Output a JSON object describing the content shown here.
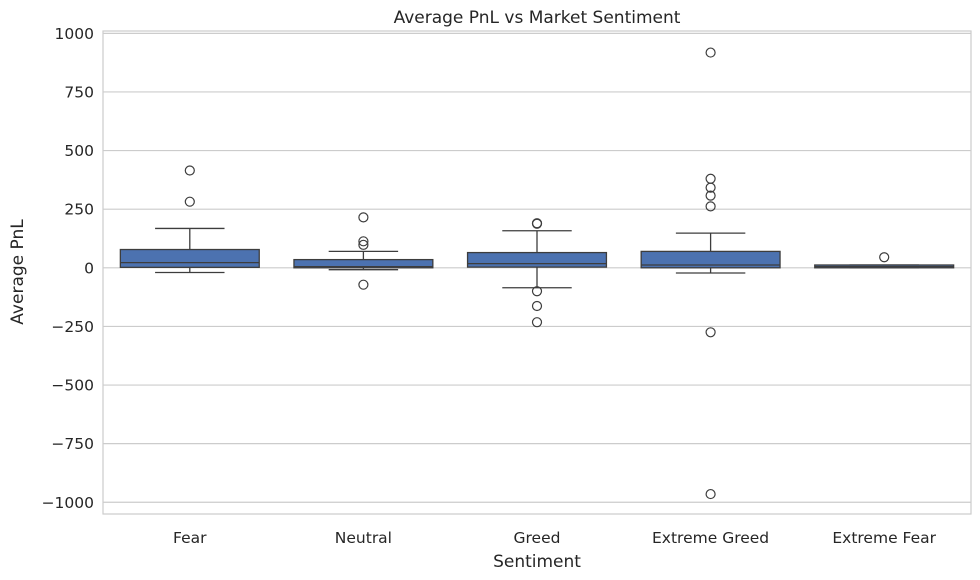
{
  "chart_data": {
    "type": "box",
    "title": "Average PnL vs Market Sentiment",
    "xlabel": "Sentiment",
    "ylabel": "Average PnL",
    "ylim": [
      -1050,
      1010
    ],
    "yticks": [
      1000,
      750,
      500,
      250,
      0,
      -250,
      -500,
      -750,
      -1000
    ],
    "ytick_labels": [
      "1000",
      "750",
      "500",
      "250",
      "0",
      "−250",
      "−500",
      "−750",
      "−1000"
    ],
    "grid": true,
    "box_color": "#4c72b0",
    "categories": [
      "Fear",
      "Neutral",
      "Greed",
      "Extreme Greed",
      "Extreme Fear"
    ],
    "boxes": [
      {
        "category": "Fear",
        "whisker_low": -20,
        "q1": 2,
        "median": 22,
        "q3": 78,
        "whisker_high": 168,
        "fliers": [
          415,
          282
        ]
      },
      {
        "category": "Neutral",
        "whisker_low": -8,
        "q1": 0,
        "median": 5,
        "q3": 35,
        "whisker_high": 70,
        "fliers": [
          215,
          113,
          98,
          -72
        ]
      },
      {
        "category": "Greed",
        "whisker_low": -85,
        "q1": 3,
        "median": 18,
        "q3": 65,
        "whisker_high": 158,
        "fliers": [
          190,
          188,
          -100,
          -163,
          -232
        ]
      },
      {
        "category": "Extreme Greed",
        "whisker_low": -22,
        "q1": 0,
        "median": 12,
        "q3": 70,
        "whisker_high": 148,
        "fliers": [
          918,
          380,
          342,
          308,
          262,
          -275,
          -965
        ]
      },
      {
        "category": "Extreme Fear",
        "whisker_low": 0,
        "q1": 0,
        "median": 5,
        "q3": 12,
        "whisker_high": 12,
        "fliers": [
          45
        ]
      }
    ]
  }
}
